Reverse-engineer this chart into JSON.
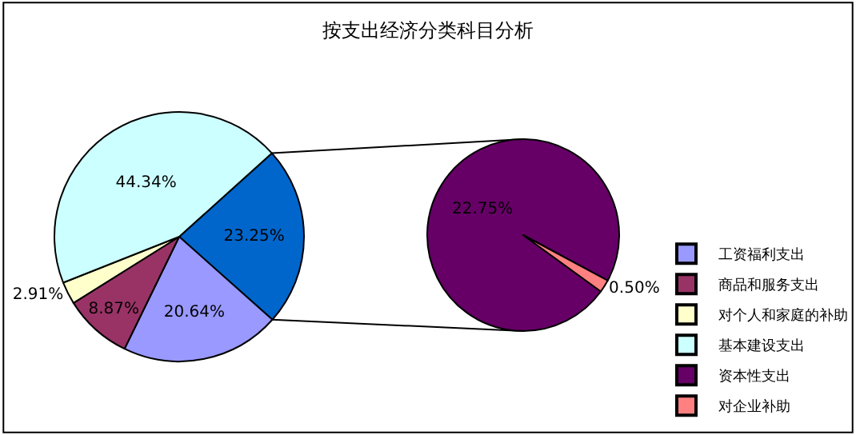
{
  "chart_data": [
    {
      "type": "pie",
      "categories": [
        null,
        "工资福利支出",
        "商品和服务支出",
        "对个人和家庭的补助",
        "基本建设支出"
      ],
      "values": [
        23.25,
        20.64,
        8.87,
        2.91,
        44.34
      ],
      "colors": [
        "#0066cc",
        "#9999ff",
        "#993366",
        "#ffffcc",
        "#ccffff"
      ],
      "value_labels": [
        "23.25%",
        "20.64%",
        "8.87%",
        "2.91%",
        "44.34%"
      ],
      "legend": "right"
    },
    {
      "type": "pie",
      "title": "按支出经济分类科目分析",
      "categories": [
        "资本性支出",
        "对企业补助"
      ],
      "values": [
        22.75,
        0.5
      ],
      "colors": [
        "#660066",
        "#ff8080"
      ],
      "value_labels": [
        "22.75%",
        "0.50%"
      ],
      "legend": "right"
    }
  ]
}
